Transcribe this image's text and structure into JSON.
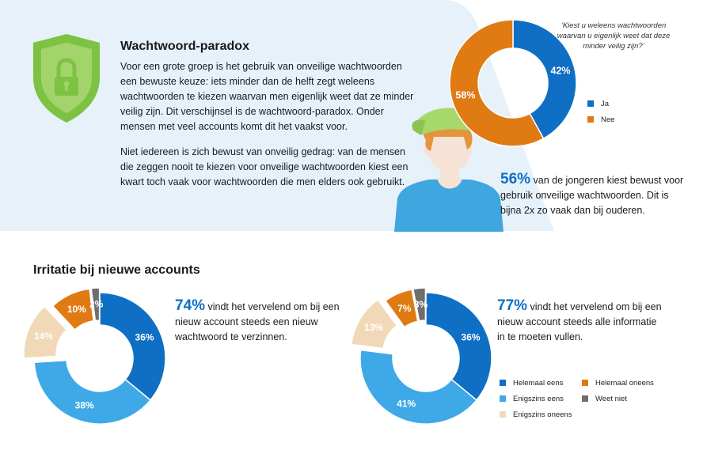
{
  "paradox": {
    "title": "Wachtwoord-paradox",
    "paragraph1": "Voor een grote groep is het gebruik van onveilige wachtwoorden een bewuste keuze: iets minder dan de helft zegt weleens wachtwoorden te kiezen waarvan men eigenlijk weet dat ze minder veilig zijn. Dit verschijnsel is de wachtwoord-paradox. Onder mensen met veel accounts komt dit het vaakst voor.",
    "paragraph2": "Niet iedereen is zich bewust van onveilig gedrag: van de mensen die zeggen nooit te kiezen voor onveilige wachtwoorden kiest een kwart toch vaak voor wachtwoorden die men elders ook gebruikt."
  },
  "question": "‘Kiest u weleens wachtwoorden waarvan u eigenlijk weet dat deze minder veilig zijn?’",
  "teen_stat": {
    "pct": "56%",
    "text": " van de jongeren kiest bewust voor gebruik onveilige wachtwoorden. Dit is bijna 2x zo vaak dan bij ouderen."
  },
  "irritation": {
    "title": "Irritatie bij nieuwe accounts",
    "stat1_pct": "74%",
    "stat1_text": " vindt het vervelend om bij een nieuw account steeds een nieuw wachtwoord te verzinnen.",
    "stat2_pct": "77%",
    "stat2_text": " vindt het vervelend om bij een nieuw account steeds alle informatie in te moeten vullen."
  },
  "colors": {
    "panel_bg": "#e6f1fa",
    "shield_green": "#7dc242",
    "shield_light": "#a3d46c",
    "dark_blue": "#0e6fc4",
    "light_blue": "#3ea9e6",
    "beige": "#f1d9b8",
    "orange": "#e07a12",
    "gray": "#6e6e6e",
    "shirt": "#3fa6df",
    "cap": "#a6d96a"
  },
  "icons": {
    "shield": "shield-lock-icon",
    "person": "teen-person-illustration"
  },
  "chart_data": [
    {
      "type": "pie",
      "title": "",
      "categories": [
        "Ja",
        "Nee"
      ],
      "values": [
        42,
        58
      ],
      "labels": [
        "42%",
        "58%"
      ],
      "colors": [
        "#0e6fc4",
        "#e07a12"
      ],
      "legend": "right"
    },
    {
      "type": "pie",
      "title": "",
      "categories": [
        "Helemaal eens",
        "Enigszins eens",
        "Enigszins oneens",
        "Helemaal oneens",
        "Weet niet"
      ],
      "values": [
        36,
        38,
        14,
        10,
        2
      ],
      "labels": [
        "36%",
        "38%",
        "14%",
        "10%",
        "2%"
      ],
      "colors": [
        "#0e6fc4",
        "#3ea9e6",
        "#f1d9b8",
        "#e07a12",
        "#6e6e6e"
      ]
    },
    {
      "type": "pie",
      "title": "",
      "categories": [
        "Helemaal eens",
        "Enigszins eens",
        "Enigszins oneens",
        "Helemaal oneens",
        "Weet niet"
      ],
      "values": [
        36,
        41,
        13,
        7,
        3
      ],
      "labels": [
        "36%",
        "41%",
        "13%",
        "7%",
        "3%"
      ],
      "colors": [
        "#0e6fc4",
        "#3ea9e6",
        "#f1d9b8",
        "#e07a12",
        "#6e6e6e"
      ],
      "legend": "bottom-right"
    }
  ]
}
